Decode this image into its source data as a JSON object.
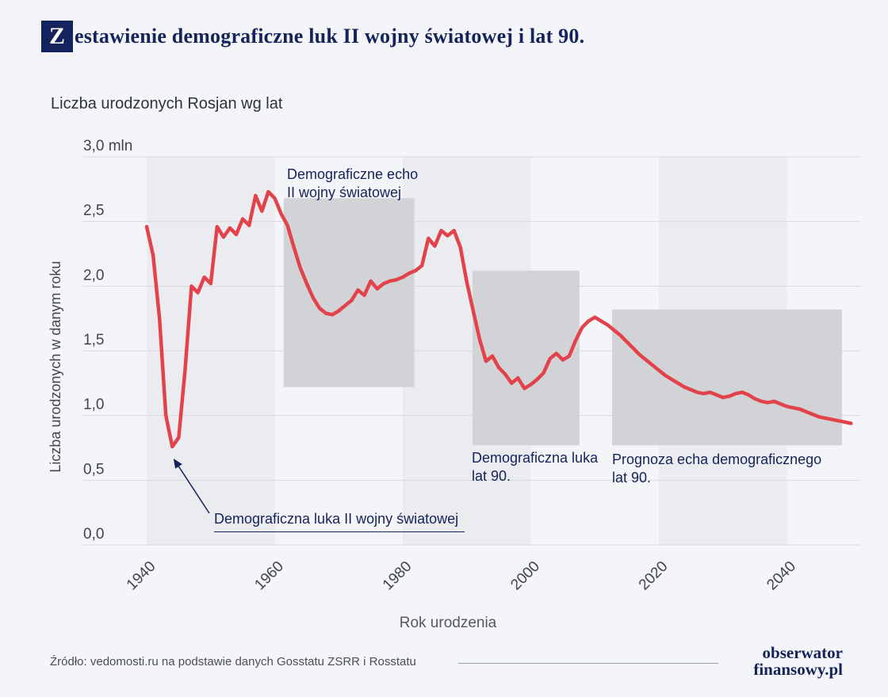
{
  "header": {
    "badge_letter": "Z",
    "title_rest": "estawienie demograficzne luk II wojny światowej i lat 90.",
    "full_title": "Zestawienie demograficzne luk II wojny światowej i lat 90."
  },
  "chart_data": {
    "type": "line",
    "title": "Liczba urodzonych Rosjan wg lat",
    "xlabel": "Rok urodzenia",
    "ylabel": "Liczba urodzonych w danym roku",
    "unit": "mln",
    "grid": true,
    "legend": "none",
    "xlim": [
      1940,
      2050
    ],
    "ylim": [
      0,
      3
    ],
    "x_ticks": [
      "1940",
      "1960",
      "1980",
      "2000",
      "2020",
      "2040"
    ],
    "x_tick_years": [
      1940,
      1960,
      1980,
      2000,
      2020,
      2040
    ],
    "y_ticks": [
      "0,0",
      "0,5",
      "1,0",
      "1,5",
      "2,0",
      "2,5",
      "3,0 mln"
    ],
    "y_tick_values": [
      0,
      0.5,
      1,
      1.5,
      2,
      2.5,
      3
    ],
    "colors": {
      "line": "#e2434b",
      "region": "#d2d3d6",
      "band": "#eaecf0",
      "grid": "#d7d9de",
      "tick": "#41444d",
      "navy": "#15235a"
    },
    "background_bands_years": [
      [
        1940,
        1960
      ],
      [
        1980,
        2000
      ],
      [
        2020,
        2040
      ]
    ],
    "regions": [
      {
        "label": "Demograficzne echo\nII wojny światowej",
        "x0": 1961.4,
        "x1": 1981.8,
        "y0": 1.22,
        "y1": 2.68
      },
      {
        "label": "Demograficzna luka\nlat 90.",
        "x0": 1990.9,
        "x1": 2007.6,
        "y0": 0.77,
        "y1": 2.12
      },
      {
        "label": "Prognoza echa demograficznego\nlat 90.",
        "x0": 2012.7,
        "x1": 2048.6,
        "y0": 0.77,
        "y1": 1.82
      }
    ],
    "annotation": {
      "text": "Demograficzna luka II wojny światowej",
      "arrow_to": [
        1944.3,
        0.66
      ]
    },
    "series": [
      {
        "name": "Liczba urodzonych Rosjan (mln)",
        "points": [
          [
            1940,
            2.46
          ],
          [
            1941,
            2.24
          ],
          [
            1942,
            1.75
          ],
          [
            1943,
            1.0
          ],
          [
            1944,
            0.76
          ],
          [
            1945,
            0.83
          ],
          [
            1946,
            1.35
          ],
          [
            1947,
            2.0
          ],
          [
            1948,
            1.95
          ],
          [
            1949,
            2.07
          ],
          [
            1950,
            2.02
          ],
          [
            1951,
            2.46
          ],
          [
            1952,
            2.38
          ],
          [
            1953,
            2.45
          ],
          [
            1954,
            2.4
          ],
          [
            1955,
            2.52
          ],
          [
            1956,
            2.47
          ],
          [
            1957,
            2.7
          ],
          [
            1958,
            2.58
          ],
          [
            1959,
            2.73
          ],
          [
            1960,
            2.68
          ],
          [
            1961,
            2.56
          ],
          [
            1962,
            2.47
          ],
          [
            1963,
            2.3
          ],
          [
            1964,
            2.14
          ],
          [
            1965,
            2.02
          ],
          [
            1966,
            1.91
          ],
          [
            1967,
            1.83
          ],
          [
            1968,
            1.79
          ],
          [
            1969,
            1.78
          ],
          [
            1970,
            1.81
          ],
          [
            1971,
            1.85
          ],
          [
            1972,
            1.89
          ],
          [
            1973,
            1.97
          ],
          [
            1974,
            1.93
          ],
          [
            1975,
            2.04
          ],
          [
            1976,
            1.98
          ],
          [
            1977,
            2.02
          ],
          [
            1978,
            2.04
          ],
          [
            1979,
            2.05
          ],
          [
            1980,
            2.07
          ],
          [
            1981,
            2.1
          ],
          [
            1982,
            2.12
          ],
          [
            1983,
            2.16
          ],
          [
            1984,
            2.37
          ],
          [
            1985,
            2.31
          ],
          [
            1986,
            2.43
          ],
          [
            1987,
            2.39
          ],
          [
            1988,
            2.43
          ],
          [
            1989,
            2.3
          ],
          [
            1990,
            2.03
          ],
          [
            1991,
            1.81
          ],
          [
            1992,
            1.59
          ],
          [
            1993,
            1.42
          ],
          [
            1994,
            1.46
          ],
          [
            1995,
            1.37
          ],
          [
            1996,
            1.32
          ],
          [
            1997,
            1.25
          ],
          [
            1998,
            1.29
          ],
          [
            1999,
            1.21
          ],
          [
            2000,
            1.24
          ],
          [
            2001,
            1.28
          ],
          [
            2002,
            1.33
          ],
          [
            2003,
            1.44
          ],
          [
            2004,
            1.48
          ],
          [
            2005,
            1.43
          ],
          [
            2006,
            1.46
          ],
          [
            2007,
            1.58
          ],
          [
            2008,
            1.68
          ],
          [
            2009,
            1.73
          ],
          [
            2010,
            1.76
          ],
          [
            2011,
            1.73
          ],
          [
            2012,
            1.7
          ],
          [
            2013,
            1.66
          ],
          [
            2014,
            1.62
          ],
          [
            2015,
            1.57
          ],
          [
            2016,
            1.52
          ],
          [
            2017,
            1.47
          ],
          [
            2018,
            1.43
          ],
          [
            2019,
            1.39
          ],
          [
            2020,
            1.35
          ],
          [
            2021,
            1.31
          ],
          [
            2022,
            1.28
          ],
          [
            2023,
            1.25
          ],
          [
            2024,
            1.22
          ],
          [
            2025,
            1.2
          ],
          [
            2026,
            1.18
          ],
          [
            2027,
            1.17
          ],
          [
            2028,
            1.18
          ],
          [
            2029,
            1.16
          ],
          [
            2030,
            1.14
          ],
          [
            2031,
            1.15
          ],
          [
            2032,
            1.17
          ],
          [
            2033,
            1.18
          ],
          [
            2034,
            1.16
          ],
          [
            2035,
            1.13
          ],
          [
            2036,
            1.11
          ],
          [
            2037,
            1.1
          ],
          [
            2038,
            1.11
          ],
          [
            2039,
            1.09
          ],
          [
            2040,
            1.07
          ],
          [
            2041,
            1.06
          ],
          [
            2042,
            1.05
          ],
          [
            2043,
            1.03
          ],
          [
            2044,
            1.01
          ],
          [
            2045,
            0.99
          ],
          [
            2046,
            0.98
          ],
          [
            2047,
            0.97
          ],
          [
            2048,
            0.96
          ],
          [
            2049,
            0.95
          ],
          [
            2050,
            0.94
          ]
        ]
      }
    ]
  },
  "footer": {
    "source": "Źródło: vedomosti.ru na podstawie danych Gosstatu ZSRR i Rosstatu",
    "logo_line1": "obserwator",
    "logo_line2": "finansowy.pl"
  }
}
